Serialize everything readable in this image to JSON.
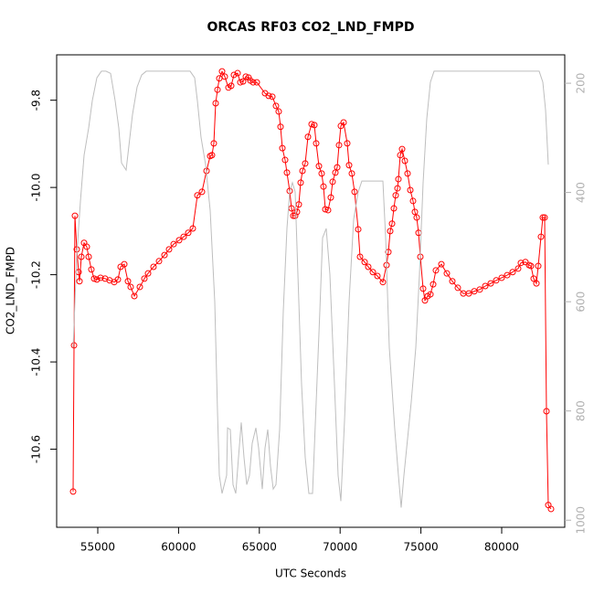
{
  "chart_data": {
    "type": "line",
    "title": "ORCAS RF03 CO2_LND_FMPD",
    "xlabel": "UTC Seconds",
    "ylabel": "CO2_LND_FMPD",
    "xlim": [
      52455,
      83903
    ],
    "xticks": [
      55000,
      60000,
      65000,
      70000,
      75000,
      80000
    ],
    "ylim": [
      -10.779,
      -9.696
    ],
    "yticks": [
      -9.8,
      {
        "value": -10,
        "label": "-10.0"
      },
      -10.2,
      -10.4,
      -10.6
    ],
    "y2lim": [
      1013,
      148
    ],
    "y2ticks": [
      200,
      400,
      600,
      800,
      1000
    ],
    "series": [
      {
        "color": "#ff0000",
        "marker": "circle",
        "x": [
          53473,
          53530,
          53586,
          53699,
          53812,
          53869,
          53982,
          54152,
          54321,
          54435,
          54604,
          54774,
          54944,
          55170,
          55453,
          55735,
          56018,
          56245,
          56414,
          56640,
          56867,
          57036,
          57263,
          57602,
          57885,
          58111,
          58450,
          58790,
          59129,
          59412,
          59695,
          60034,
          60317,
          60600,
          60882,
          61165,
          61448,
          61731,
          61957,
          62070,
          62183,
          62296,
          62410,
          62523,
          62692,
          62862,
          63088,
          63258,
          63427,
          63654,
          63824,
          63993,
          64163,
          64333,
          64446,
          64615,
          64842,
          65351,
          65577,
          65803,
          66029,
          66199,
          66312,
          66425,
          66595,
          66708,
          66878,
          66991,
          67104,
          67217,
          67330,
          67443,
          67557,
          67670,
          67839,
          68009,
          68235,
          68405,
          68518,
          68688,
          68857,
          68971,
          69084,
          69253,
          69423,
          69536,
          69706,
          69819,
          69932,
          70045,
          70215,
          70441,
          70554,
          70724,
          70894,
          71120,
          71233,
          71516,
          71742,
          72025,
          72308,
          72647,
          72873,
          72986,
          73099,
          73213,
          73326,
          73439,
          73552,
          73608,
          73722,
          73835,
          74004,
          74174,
          74344,
          74513,
          74627,
          74740,
          74853,
          74966,
          75136,
          75249,
          75418,
          75588,
          75758,
          75927,
          76267,
          76606,
          76945,
          77285,
          77624,
          77964,
          78303,
          78642,
          78982,
          79321,
          79660,
          80000,
          80339,
          80678,
          81018,
          81187,
          81470,
          81697,
          81810,
          81979,
          82149,
          82262,
          82432,
          82545,
          82658,
          82771,
          82884,
          83054
        ],
        "values": [
          -10.697,
          -10.362,
          -10.065,
          -10.142,
          -10.194,
          -10.215,
          -10.159,
          -10.127,
          -10.136,
          -10.159,
          -10.188,
          -10.209,
          -10.211,
          -10.207,
          -10.209,
          -10.213,
          -10.217,
          -10.211,
          -10.182,
          -10.176,
          -10.215,
          -10.228,
          -10.249,
          -10.228,
          -10.209,
          -10.197,
          -10.182,
          -10.169,
          -10.155,
          -10.142,
          -10.13,
          -10.121,
          -10.113,
          -10.104,
          -10.094,
          -10.018,
          -10.01,
          -9.962,
          -9.928,
          -9.926,
          -9.899,
          -9.807,
          -9.776,
          -9.75,
          -9.734,
          -9.746,
          -9.771,
          -9.767,
          -9.742,
          -9.738,
          -9.759,
          -9.757,
          -9.746,
          -9.748,
          -9.755,
          -9.759,
          -9.759,
          -9.784,
          -9.79,
          -9.792,
          -9.813,
          -9.826,
          -9.861,
          -9.91,
          -9.937,
          -9.966,
          -10.008,
          -10.048,
          -10.065,
          -10.065,
          -10.056,
          -10.039,
          -9.989,
          -9.962,
          -9.945,
          -9.884,
          -9.855,
          -9.857,
          -9.899,
          -9.951,
          -9.968,
          -9.998,
          -10.05,
          -10.052,
          -10.023,
          -9.987,
          -9.966,
          -9.954,
          -9.903,
          -9.859,
          -9.851,
          -9.899,
          -9.949,
          -9.968,
          -10.01,
          -10.096,
          -10.159,
          -10.171,
          -10.182,
          -10.194,
          -10.203,
          -10.217,
          -10.178,
          -10.148,
          -10.1,
          -10.083,
          -10.048,
          -10.018,
          -10.002,
          -9.981,
          -9.926,
          -9.912,
          -9.939,
          -9.968,
          -10.006,
          -10.031,
          -10.056,
          -10.069,
          -10.104,
          -10.159,
          -10.232,
          -10.259,
          -10.249,
          -10.245,
          -10.222,
          -10.19,
          -10.176,
          -10.197,
          -10.215,
          -10.23,
          -10.243,
          -10.243,
          -10.238,
          -10.234,
          -10.226,
          -10.22,
          -10.213,
          -10.207,
          -10.201,
          -10.194,
          -10.186,
          -10.173,
          -10.171,
          -10.178,
          -10.18,
          -10.209,
          -10.22,
          -10.18,
          -10.113,
          -10.069,
          -10.069,
          -10.513,
          -10.728,
          -10.737
        ]
      },
      {
        "color": "#bebebe",
        "axis": "y2",
        "x": [
          53473,
          53699,
          53926,
          54152,
          54435,
          54661,
          54944,
          55226,
          55509,
          55792,
          56075,
          56301,
          56471,
          56754,
          56924,
          57150,
          57433,
          57715,
          57998,
          60713,
          60996,
          61165,
          61391,
          61674,
          61957,
          62240,
          62410,
          62523,
          62692,
          62975,
          63032,
          63202,
          63371,
          63541,
          63710,
          63880,
          64050,
          64220,
          64389,
          64559,
          64785,
          64955,
          65181,
          65351,
          65521,
          65690,
          65860,
          66029,
          66256,
          66482,
          66708,
          66878,
          67047,
          67217,
          67387,
          67613,
          67839,
          68066,
          68292,
          68518,
          68744,
          68914,
          69140,
          69366,
          69649,
          69875,
          70045,
          70271,
          70554,
          70837,
          71120,
          71346,
          72647,
          72817,
          73043,
          73382,
          73608,
          73778,
          73948,
          74174,
          74400,
          74683,
          74909,
          75136,
          75362,
          75588,
          75814,
          82319,
          82545,
          82715,
          82884
        ],
        "values": [
          684,
          516,
          416,
          332,
          282,
          232,
          190,
          178,
          178,
          182,
          232,
          282,
          346,
          359,
          315,
          257,
          207,
          185,
          178,
          178,
          190,
          232,
          299,
          349,
          433,
          600,
          801,
          918,
          951,
          918,
          831,
          834,
          935,
          951,
          885,
          821,
          885,
          935,
          918,
          859,
          831,
          868,
          943,
          868,
          834,
          901,
          943,
          935,
          834,
          617,
          466,
          399,
          382,
          399,
          550,
          751,
          885,
          951,
          951,
          784,
          617,
          483,
          466,
          550,
          751,
          918,
          965,
          818,
          600,
          449,
          399,
          379,
          379,
          483,
          684,
          834,
          918,
          977,
          918,
          851,
          784,
          684,
          550,
          382,
          265,
          198,
          178,
          178,
          198,
          249,
          349
        ]
      }
    ]
  }
}
